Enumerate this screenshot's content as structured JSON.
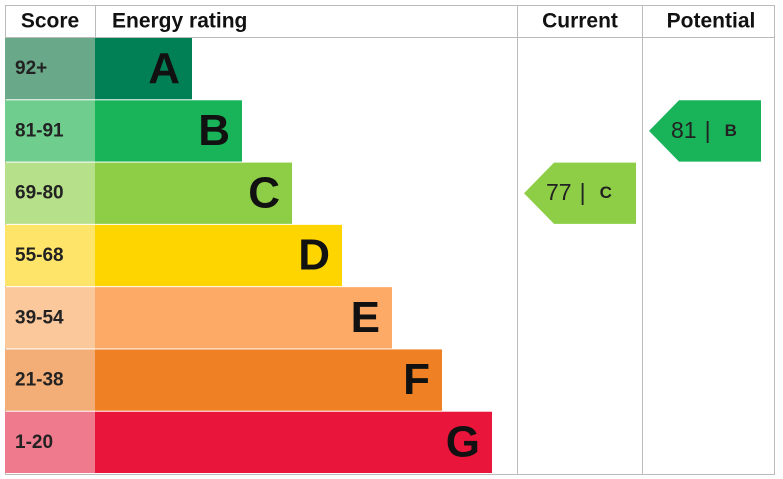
{
  "header": {
    "score": "Score",
    "rating": "Energy rating",
    "current": "Current",
    "potential": "Potential"
  },
  "bands": [
    {
      "score": "92+",
      "letter": "A"
    },
    {
      "score": "81-91",
      "letter": "B"
    },
    {
      "score": "69-80",
      "letter": "C"
    },
    {
      "score": "55-68",
      "letter": "D"
    },
    {
      "score": "39-54",
      "letter": "E"
    },
    {
      "score": "21-38",
      "letter": "F"
    },
    {
      "score": "1-20",
      "letter": "G"
    }
  ],
  "current": {
    "score": "77",
    "separator": "|",
    "band": "C"
  },
  "potential": {
    "score": "81",
    "separator": "|",
    "band": "B"
  }
}
